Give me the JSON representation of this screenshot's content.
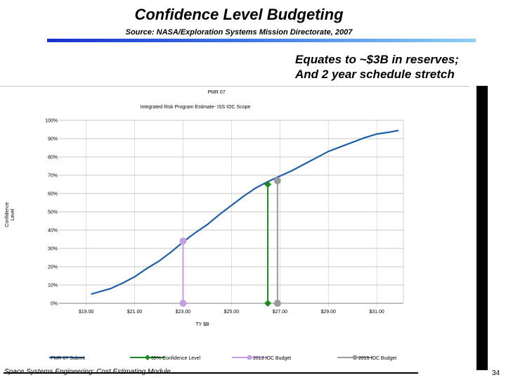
{
  "slide": {
    "title": "Confidence Level Budgeting",
    "source": "Source: NASA/Exploration Systems Mission Directorate, 2007",
    "callout_line1": "Equates to ~$3B in reserves;",
    "callout_line2": "And 2 year schedule stretch",
    "footer": "Space Systems Engineering: Cost Estimating Module",
    "page_number": "34"
  },
  "chart_data": {
    "type": "line",
    "title": "PMR 07",
    "subtitle": "Integrated Risk Program Estimate- ISS IOC Scope",
    "xlabel": "TY $B",
    "ylabel": "Confidence Level",
    "xlim": [
      18.4,
      32.1
    ],
    "ylim": [
      0,
      100
    ],
    "x_ticks": [
      19,
      21,
      23,
      25,
      27,
      29,
      31
    ],
    "x_tick_labels": [
      "$19.00",
      "$21.00",
      "$23.00",
      "$25.00",
      "$27.00",
      "$29.00",
      "$31.00"
    ],
    "y_ticks": [
      0,
      10,
      20,
      30,
      40,
      50,
      60,
      70,
      80,
      90,
      100
    ],
    "y_tick_labels": [
      "0%",
      "10%",
      "20%",
      "30%",
      "40%",
      "50%",
      "60%",
      "70%",
      "80%",
      "90%",
      "100%"
    ],
    "grid": {
      "x": true,
      "y": true
    },
    "legend_position": "bottom",
    "series": [
      {
        "name": "PMR 07 Submit",
        "color": "#1f5fa8",
        "marker": "none",
        "points": [
          [
            19.2,
            5
          ],
          [
            19.6,
            6.5
          ],
          [
            20.0,
            8
          ],
          [
            20.5,
            11
          ],
          [
            21.0,
            14.5
          ],
          [
            21.5,
            19
          ],
          [
            22.0,
            23
          ],
          [
            22.5,
            28
          ],
          [
            23.0,
            33.5
          ],
          [
            23.5,
            38.5
          ],
          [
            24.0,
            43
          ],
          [
            24.5,
            48.5
          ],
          [
            25.0,
            53.5
          ],
          [
            25.5,
            58.5
          ],
          [
            26.0,
            63
          ],
          [
            26.5,
            66.5
          ],
          [
            27.0,
            69.5
          ],
          [
            27.5,
            72.5
          ],
          [
            28.0,
            76
          ],
          [
            28.5,
            79.5
          ],
          [
            29.0,
            83
          ],
          [
            29.5,
            85.5
          ],
          [
            30.0,
            88
          ],
          [
            30.5,
            90.5
          ],
          [
            31.0,
            92.5
          ],
          [
            31.5,
            93.5
          ],
          [
            31.9,
            94.5
          ]
        ]
      },
      {
        "name": "65% Confidence Level",
        "color": "#1a8a1a",
        "marker": "diamond",
        "points": [
          [
            26.5,
            0
          ],
          [
            26.5,
            65
          ]
        ]
      },
      {
        "name": "2013 IOC Budget",
        "color": "#c49ee6",
        "marker": "circle",
        "points": [
          [
            23.0,
            0
          ],
          [
            23.0,
            34
          ]
        ]
      },
      {
        "name": "2015 IOC Budget",
        "color": "#9a9a9a",
        "marker": "circle",
        "points": [
          [
            26.9,
            0
          ],
          [
            26.9,
            67
          ]
        ]
      }
    ]
  }
}
